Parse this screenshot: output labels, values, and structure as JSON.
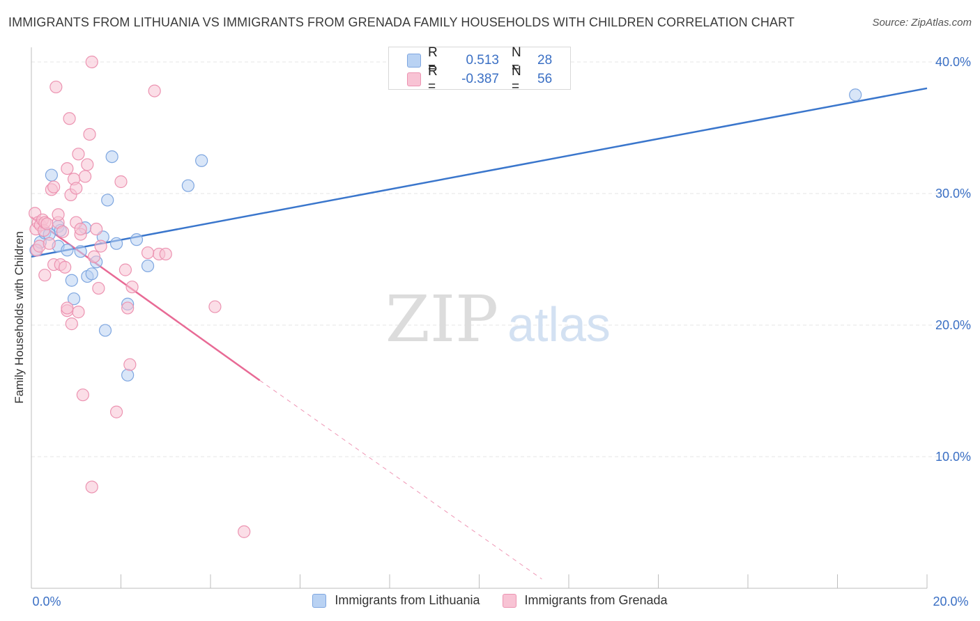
{
  "title": "IMMIGRANTS FROM LITHUANIA VS IMMIGRANTS FROM GRENADA FAMILY HOUSEHOLDS WITH CHILDREN CORRELATION CHART",
  "source": "Source: ZipAtlas.com",
  "watermark": {
    "zip": "ZIP",
    "atlas": "atlas"
  },
  "colors": {
    "blue_fill": "#b9d2f3",
    "blue_stroke": "#7ea6e0",
    "blue_line": "#3a76cc",
    "pink_fill": "#f8c3d4",
    "pink_stroke": "#ec93b1",
    "pink_line": "#e86a95",
    "tick_label": "#3a6fc4",
    "grid": "#e6e6e6"
  },
  "stats_legend": [
    {
      "swatch": "blue",
      "r_label": "R =",
      "r_value": "0.513",
      "n_label": "N =",
      "n_value": "28"
    },
    {
      "swatch": "pink",
      "r_label": "R =",
      "r_value": "-0.387",
      "n_label": "N =",
      "n_value": "56"
    }
  ],
  "bottom_legend": [
    {
      "swatch": "blue",
      "label": "Immigrants from Lithuania"
    },
    {
      "swatch": "pink",
      "label": "Immigrants from Grenada"
    }
  ],
  "chart_data": {
    "type": "scatter",
    "title": "IMMIGRANTS FROM LITHUANIA VS IMMIGRANTS FROM GRENADA FAMILY HOUSEHOLDS WITH CHILDREN CORRELATION CHART",
    "xlabel": "",
    "ylabel": "Family Households with Children",
    "xlim": [
      0,
      20
    ],
    "ylim": [
      0,
      40.9
    ],
    "x_tick_labels": [
      {
        "value": 0,
        "label": "0.0%"
      },
      {
        "value": 20,
        "label": "20.0%"
      }
    ],
    "x_minor_ticks": [
      0,
      2,
      4,
      6,
      8,
      10,
      12,
      14,
      16,
      18,
      20
    ],
    "y_ticks": [
      {
        "value": 10,
        "label": "10.0%"
      },
      {
        "value": 20,
        "label": "20.0%"
      },
      {
        "value": 30,
        "label": "30.0%"
      },
      {
        "value": 40,
        "label": "40.0%"
      }
    ],
    "grid": true,
    "series": [
      {
        "name": "Immigrants from Lithuania",
        "color": "blue",
        "points": [
          [
            0.1,
            25.7
          ],
          [
            0.2,
            26.3
          ],
          [
            0.3,
            27.0
          ],
          [
            0.4,
            26.9
          ],
          [
            0.45,
            31.4
          ],
          [
            0.6,
            26.0
          ],
          [
            0.6,
            27.5
          ],
          [
            0.65,
            27.2
          ],
          [
            0.8,
            25.7
          ],
          [
            0.9,
            23.4
          ],
          [
            0.95,
            22.0
          ],
          [
            1.1,
            25.6
          ],
          [
            1.2,
            27.4
          ],
          [
            1.25,
            23.7
          ],
          [
            1.35,
            23.9
          ],
          [
            1.45,
            24.8
          ],
          [
            1.6,
            26.7
          ],
          [
            1.65,
            19.6
          ],
          [
            1.7,
            29.5
          ],
          [
            1.8,
            32.8
          ],
          [
            1.9,
            26.2
          ],
          [
            2.15,
            21.6
          ],
          [
            2.15,
            16.2
          ],
          [
            2.35,
            26.5
          ],
          [
            2.6,
            24.5
          ],
          [
            3.5,
            30.6
          ],
          [
            3.8,
            32.5
          ],
          [
            18.4,
            37.5
          ]
        ]
      },
      {
        "name": "Immigrants from Grenada",
        "color": "pink",
        "points": [
          [
            0.08,
            28.5
          ],
          [
            0.1,
            27.3
          ],
          [
            0.12,
            25.7
          ],
          [
            0.15,
            27.8
          ],
          [
            0.18,
            26.0
          ],
          [
            0.2,
            27.6
          ],
          [
            0.25,
            28.0
          ],
          [
            0.28,
            27.2
          ],
          [
            0.3,
            23.8
          ],
          [
            0.3,
            27.8
          ],
          [
            0.35,
            27.7
          ],
          [
            0.4,
            26.2
          ],
          [
            0.45,
            30.3
          ],
          [
            0.5,
            24.6
          ],
          [
            0.5,
            30.5
          ],
          [
            0.55,
            38.1
          ],
          [
            0.6,
            27.8
          ],
          [
            0.6,
            28.4
          ],
          [
            0.65,
            24.6
          ],
          [
            0.7,
            27.1
          ],
          [
            0.75,
            24.4
          ],
          [
            0.8,
            21.1
          ],
          [
            0.8,
            21.3
          ],
          [
            0.8,
            31.9
          ],
          [
            0.85,
            35.7
          ],
          [
            0.88,
            29.9
          ],
          [
            0.9,
            20.1
          ],
          [
            0.95,
            31.1
          ],
          [
            1.0,
            30.4
          ],
          [
            1.0,
            27.8
          ],
          [
            1.05,
            21.0
          ],
          [
            1.05,
            33.0
          ],
          [
            1.1,
            26.9
          ],
          [
            1.1,
            27.3
          ],
          [
            1.15,
            14.7
          ],
          [
            1.2,
            31.3
          ],
          [
            1.25,
            32.2
          ],
          [
            1.3,
            34.5
          ],
          [
            1.35,
            7.7
          ],
          [
            1.35,
            40.0
          ],
          [
            1.45,
            27.3
          ],
          [
            1.5,
            22.8
          ],
          [
            1.55,
            26.0
          ],
          [
            1.9,
            13.4
          ],
          [
            2.0,
            30.9
          ],
          [
            2.1,
            24.2
          ],
          [
            2.15,
            21.3
          ],
          [
            2.2,
            17.0
          ],
          [
            2.25,
            22.9
          ],
          [
            2.75,
            37.8
          ],
          [
            2.85,
            25.4
          ],
          [
            3.0,
            25.4
          ],
          [
            4.1,
            21.4
          ],
          [
            4.75,
            4.3
          ],
          [
            2.6,
            25.5
          ],
          [
            1.4,
            25.2
          ]
        ]
      }
    ],
    "trend_lines": [
      {
        "series": "Immigrants from Lithuania",
        "x": [
          0,
          20
        ],
        "y": [
          25.2,
          38.0
        ],
        "style": "solid"
      },
      {
        "series": "Immigrants from Grenada",
        "x": [
          0,
          5.1
        ],
        "y": [
          28.2,
          15.8
        ],
        "style": "solid"
      },
      {
        "series": "Immigrants from Grenada",
        "x": [
          5.1,
          11.4
        ],
        "y": [
          15.8,
          0.7
        ],
        "style": "dashed"
      }
    ]
  }
}
